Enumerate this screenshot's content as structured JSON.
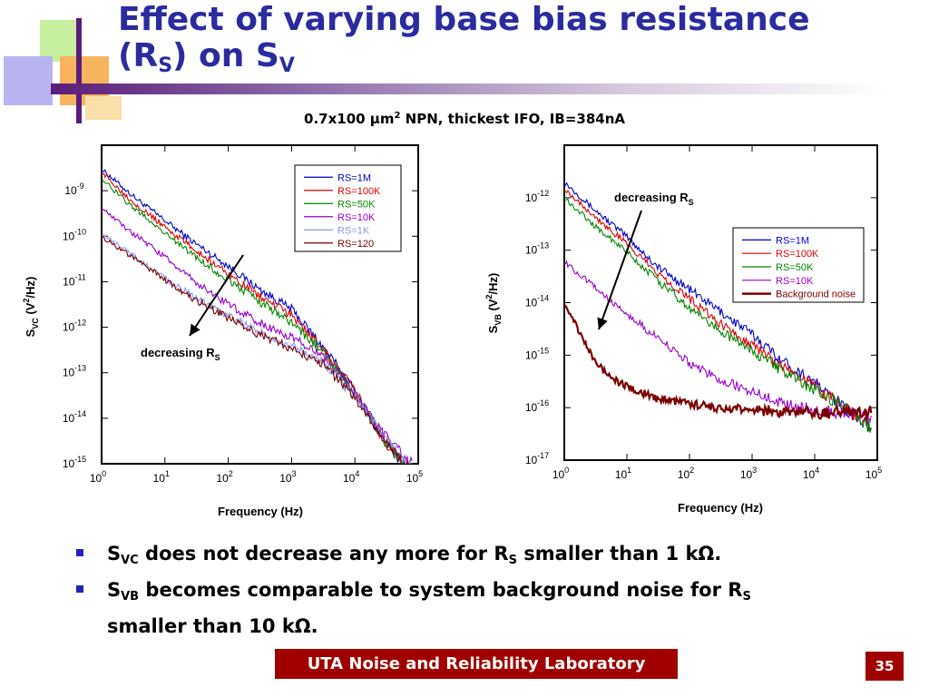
{
  "slide": {
    "title_line1": "Effect of varying base bias resistance",
    "title_line2_pre": "(R",
    "title_line2_sub1": "S",
    "title_line2_mid": ") on S",
    "title_line2_sub2": "V",
    "subtitle_pre": "0.7x100 µm",
    "subtitle_sup": "2",
    "subtitle_post": " NPN, thickest IFO, IB=384nA",
    "bullets": [
      {
        "s1": "S",
        "sub1": "VC",
        "t1": " does not decrease any more for R",
        "sub2": "S",
        "t2": " smaller than 1 kΩ."
      },
      {
        "s1": "S",
        "sub1": "VB",
        "t1": " becomes comparable to system background noise for R",
        "sub2": "S",
        "t2": "smaller than 10 kΩ."
      }
    ],
    "footer": "UTA Noise and Reliability Laboratory",
    "page_number": "35",
    "colors": {
      "title": "#2b2ba0",
      "footer_bg": "#a00000",
      "bullet": "#2222bb"
    }
  },
  "chart_data": [
    {
      "type": "line",
      "x_scale": "log",
      "y_scale": "log",
      "xlim": [
        1,
        100000
      ],
      "ylim": [
        1e-15,
        1e-08
      ],
      "xlabel": "Frequency (Hz)",
      "ylabel_main": "S",
      "ylabel_sub": "VC",
      "ylabel_rest": " (V",
      "ylabel_sup": "2",
      "ylabel_end": "/Hz)",
      "x_ticks": [
        {
          "base": "10",
          "exp": "0"
        },
        {
          "base": "10",
          "exp": "1"
        },
        {
          "base": "10",
          "exp": "2"
        },
        {
          "base": "10",
          "exp": "3"
        },
        {
          "base": "10",
          "exp": "4"
        },
        {
          "base": "10",
          "exp": "5"
        }
      ],
      "y_ticks": [
        {
          "base": "10",
          "exp": "-9"
        },
        {
          "base": "10",
          "exp": "-10"
        },
        {
          "base": "10",
          "exp": "-11"
        },
        {
          "base": "10",
          "exp": "-12"
        },
        {
          "base": "10",
          "exp": "-13"
        },
        {
          "base": "10",
          "exp": "-14"
        },
        {
          "base": "10",
          "exp": "-15"
        }
      ],
      "legend_position": "top-right",
      "annotation": {
        "text": "decreasing R",
        "sub": "S"
      },
      "series": [
        {
          "name": "RS=1M",
          "color": "#0000cc",
          "x": [
            1,
            3,
            10,
            30,
            100,
            300,
            1000,
            3000,
            10000,
            30000,
            80000
          ],
          "y": [
            3e-09,
            8e-10,
            2.2e-10,
            7e-11,
            2.2e-11,
            7e-12,
            2.5e-12,
            4e-13,
            4e-14,
            3e-15,
            6e-16
          ]
        },
        {
          "name": "RS=100K",
          "color": "#dd0000",
          "x": [
            1,
            3,
            10,
            30,
            100,
            300,
            1000,
            3000,
            10000,
            30000,
            80000
          ],
          "y": [
            2.5e-09,
            6e-10,
            1.6e-10,
            5e-11,
            1.5e-11,
            5e-12,
            1.8e-12,
            3.5e-13,
            4e-14,
            3e-15,
            6e-16
          ]
        },
        {
          "name": "RS=50K",
          "color": "#008800",
          "x": [
            1,
            3,
            10,
            30,
            100,
            300,
            1000,
            3000,
            10000,
            30000,
            80000
          ],
          "y": [
            1.8e-09,
            4.5e-10,
            1.2e-10,
            3.5e-11,
            1.1e-11,
            3.8e-12,
            1.3e-12,
            3e-13,
            3.5e-14,
            3e-15,
            7e-16
          ]
        },
        {
          "name": "RS=10K",
          "color": "#9900cc",
          "x": [
            1,
            3,
            10,
            30,
            100,
            300,
            1000,
            3000,
            10000,
            30000,
            80000
          ],
          "y": [
            4e-10,
            1.2e-10,
            3.5e-11,
            1e-11,
            3.2e-12,
            1.3e-12,
            6e-13,
            2.5e-13,
            3.5e-14,
            4e-15,
            1e-15
          ]
        },
        {
          "name": "RS=1K",
          "color": "#8899ee",
          "x": [
            1,
            3,
            10,
            30,
            100,
            300,
            1000,
            3000,
            10000,
            30000,
            80000
          ],
          "y": [
            1.1e-10,
            4e-11,
            1.2e-11,
            4.5e-12,
            1.8e-12,
            8e-13,
            4e-13,
            1.8e-13,
            3e-14,
            3.5e-15,
            8e-16
          ]
        },
        {
          "name": "RS=120",
          "color": "#7a0000",
          "x": [
            1,
            3,
            10,
            30,
            100,
            300,
            1000,
            3000,
            10000,
            30000,
            80000
          ],
          "y": [
            1e-10,
            3.5e-11,
            1.1e-11,
            4e-12,
            1.6e-12,
            7e-13,
            3.5e-13,
            1.6e-13,
            3e-14,
            3e-15,
            7e-16
          ]
        }
      ]
    },
    {
      "type": "line",
      "x_scale": "log",
      "y_scale": "log",
      "xlim": [
        1,
        100000
      ],
      "ylim": [
        1e-17,
        1e-11
      ],
      "xlabel": "Frequency (Hz)",
      "ylabel_main": "S",
      "ylabel_sub": "VB",
      "ylabel_rest": " (V",
      "ylabel_sup": "2",
      "ylabel_end": "/Hz)",
      "x_ticks": [
        {
          "base": "10",
          "exp": "0"
        },
        {
          "base": "10",
          "exp": "1"
        },
        {
          "base": "10",
          "exp": "2"
        },
        {
          "base": "10",
          "exp": "3"
        },
        {
          "base": "10",
          "exp": "4"
        },
        {
          "base": "10",
          "exp": "5"
        }
      ],
      "y_ticks": [
        {
          "base": "10",
          "exp": "-12"
        },
        {
          "base": "10",
          "exp": "-13"
        },
        {
          "base": "10",
          "exp": "-14"
        },
        {
          "base": "10",
          "exp": "-15"
        },
        {
          "base": "10",
          "exp": "-16"
        },
        {
          "base": "10",
          "exp": "-17"
        }
      ],
      "legend_position": "right",
      "annotation": {
        "text": "decreasing R",
        "sub": "S"
      },
      "series": [
        {
          "name": "RS=1M",
          "color": "#0000cc",
          "x": [
            1,
            3,
            10,
            30,
            100,
            300,
            1000,
            3000,
            10000,
            30000,
            80000
          ],
          "y": [
            2e-12,
            6e-13,
            1.8e-13,
            5e-14,
            1.8e-14,
            7e-15,
            2.5e-15,
            8e-16,
            3e-16,
            1e-16,
            4e-17
          ]
        },
        {
          "name": "RS=100K",
          "color": "#dd0000",
          "x": [
            1,
            3,
            10,
            30,
            100,
            300,
            1000,
            3000,
            10000,
            30000,
            80000
          ],
          "y": [
            1.5e-12,
            4.5e-13,
            1.3e-13,
            3.8e-14,
            1.2e-14,
            4e-15,
            1.6e-15,
            6e-16,
            2.5e-16,
            1e-16,
            4e-17
          ]
        },
        {
          "name": "RS=50K",
          "color": "#008800",
          "x": [
            1,
            3,
            10,
            30,
            100,
            300,
            1000,
            3000,
            10000,
            30000,
            80000
          ],
          "y": [
            1e-12,
            3e-13,
            9e-14,
            2.7e-14,
            8e-15,
            3e-15,
            1.2e-15,
            5e-16,
            2.2e-16,
            1e-16,
            4e-17
          ]
        },
        {
          "name": "RS=10K",
          "color": "#9900cc",
          "x": [
            1,
            3,
            10,
            30,
            100,
            300,
            1000,
            3000,
            10000,
            30000,
            80000
          ],
          "y": [
            6e-14,
            2e-14,
            6e-15,
            2.2e-15,
            7e-16,
            3.5e-16,
            2e-16,
            1.2e-16,
            9e-17,
            8e-17,
            7e-17
          ]
        },
        {
          "name": "Background noise",
          "color": "#7a0000",
          "x": [
            1,
            2,
            3,
            5,
            10,
            30,
            100,
            300,
            1000,
            3000,
            10000,
            30000,
            80000
          ],
          "y": [
            1e-14,
            2e-15,
            8e-16,
            4e-16,
            2.5e-16,
            1.5e-16,
            1.2e-16,
            1e-16,
            9e-17,
            8.5e-17,
            8e-17,
            8e-17,
            8e-17
          ]
        }
      ]
    }
  ]
}
